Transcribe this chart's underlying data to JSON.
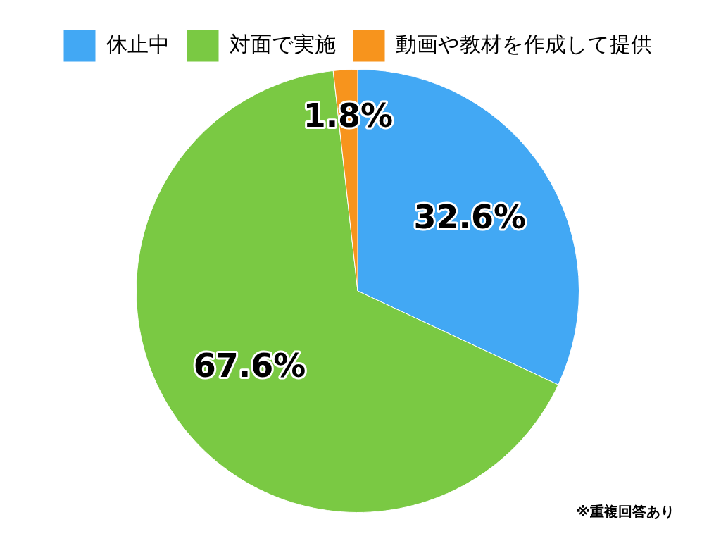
{
  "chart_data": {
    "type": "pie",
    "categories": [
      "休止中",
      "対面で実施",
      "動画や教材を作成して提供"
    ],
    "values": [
      32.6,
      67.6,
      1.8
    ],
    "colors": [
      "#42a8f4",
      "#7ac943",
      "#f7941d"
    ],
    "value_labels": [
      "32.6%",
      "67.6%",
      "1.8%"
    ],
    "legend": "top",
    "annotations": [
      "※重複回答あり"
    ]
  }
}
